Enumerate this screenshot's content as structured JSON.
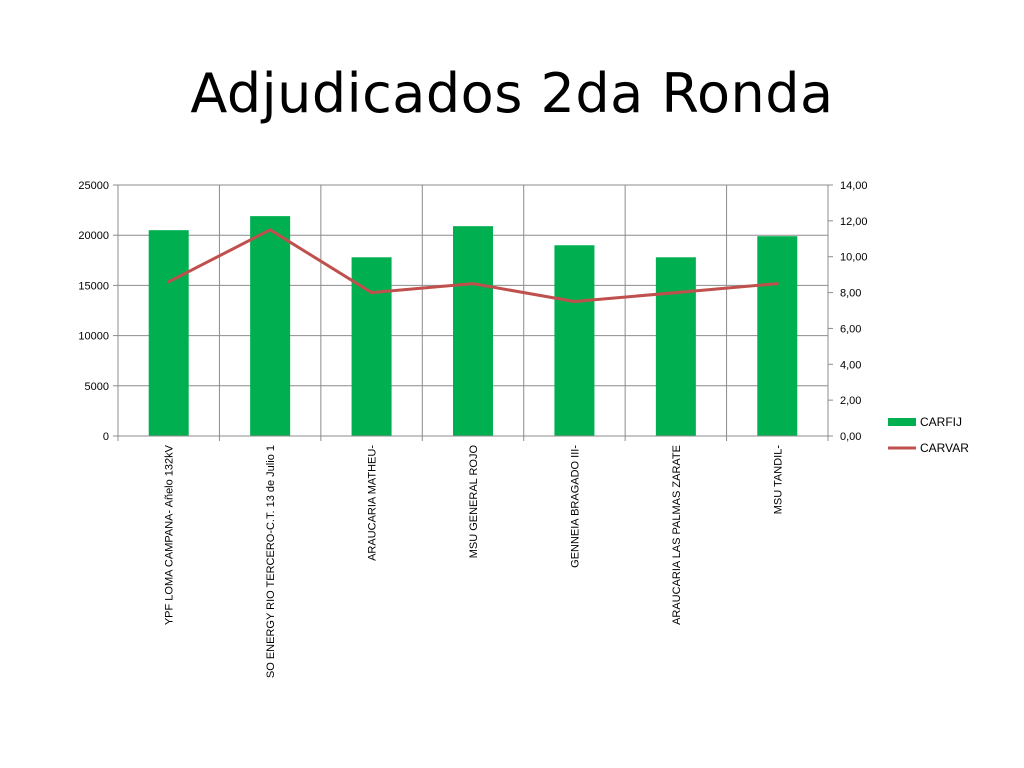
{
  "slide": {
    "title": "Adjudicados 2da Ronda"
  },
  "chart_data": {
    "type": "bar",
    "title": "",
    "categories": [
      "YPF LOMA CAMPANA- Añelo 132kV",
      "SO ENERGY RIO TERCERO-C.T. 13 de Julio 1",
      "ARAUCARIA MATHEU-",
      "MSU GENERAL ROJO",
      "GENNEIA BRAGADO III-",
      "ARAUCARIA LAS PALMAS ZARATE",
      "MSU TANDIL-"
    ],
    "series": [
      {
        "name": "CARFIJ",
        "type": "bar",
        "axis": "left",
        "color": "#00B050",
        "values": [
          20500,
          21900,
          17800,
          20900,
          19000,
          17800,
          19900
        ]
      },
      {
        "name": "CARVAR",
        "type": "line",
        "axis": "right",
        "color": "#C0504D",
        "values": [
          8.6,
          11.5,
          8.0,
          8.5,
          7.5,
          8.0,
          8.5
        ]
      }
    ],
    "y_left": {
      "min": 0,
      "max": 25000,
      "step": 5000,
      "tick_labels": [
        "0",
        "5000",
        "10000",
        "15000",
        "20000",
        "25000"
      ]
    },
    "y_right": {
      "min": 0,
      "max": 14,
      "step": 2,
      "tick_labels": [
        "0,00",
        "2,00",
        "4,00",
        "6,00",
        "8,00",
        "10,00",
        "12,00",
        "14,00"
      ]
    },
    "grid": {
      "horizontal": true,
      "vertical": true
    },
    "legend": {
      "position": "right"
    }
  }
}
